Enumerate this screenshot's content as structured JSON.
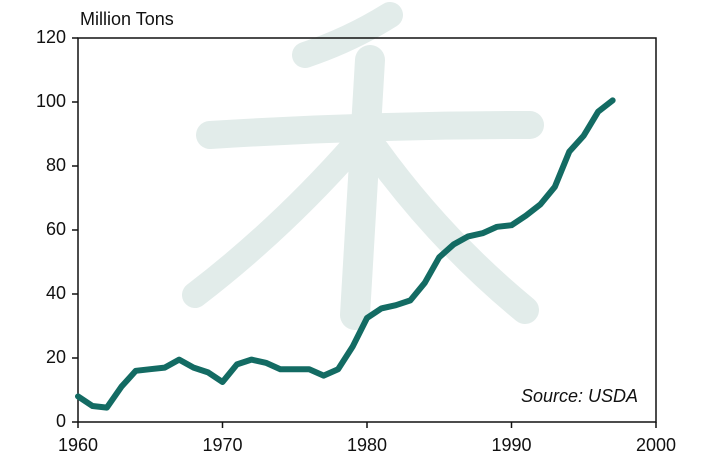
{
  "chart_data": {
    "type": "line",
    "y_label": "Million Tons",
    "annotation": "Source: USDA",
    "x": [
      1960,
      1961,
      1962,
      1963,
      1964,
      1965,
      1966,
      1967,
      1968,
      1969,
      1970,
      1971,
      1972,
      1973,
      1974,
      1975,
      1976,
      1977,
      1978,
      1979,
      1980,
      1981,
      1982,
      1983,
      1984,
      1985,
      1986,
      1987,
      1988,
      1989,
      1990,
      1991,
      1992,
      1993,
      1994,
      1995,
      1996,
      1997
    ],
    "series": [
      {
        "color": "#136b63",
        "values": [
          8,
          5,
          4.5,
          11,
          16,
          16.5,
          17,
          19.5,
          17,
          15.5,
          12.5,
          18,
          19.5,
          18.5,
          16.5,
          16.5,
          16.5,
          14.5,
          16.5,
          23.5,
          32.5,
          35.5,
          36.5,
          38,
          43.5,
          51.5,
          55.5,
          58,
          59,
          61,
          61.5,
          64.5,
          68,
          73.5,
          84.5,
          89.5,
          97,
          100.5
        ]
      }
    ],
    "xlim": [
      1960,
      2000
    ],
    "xticks": [
      1960,
      1970,
      1980,
      1990,
      2000
    ],
    "ylim": [
      0,
      120
    ],
    "yticks": [
      0,
      20,
      40,
      60,
      80,
      100,
      120
    ]
  }
}
